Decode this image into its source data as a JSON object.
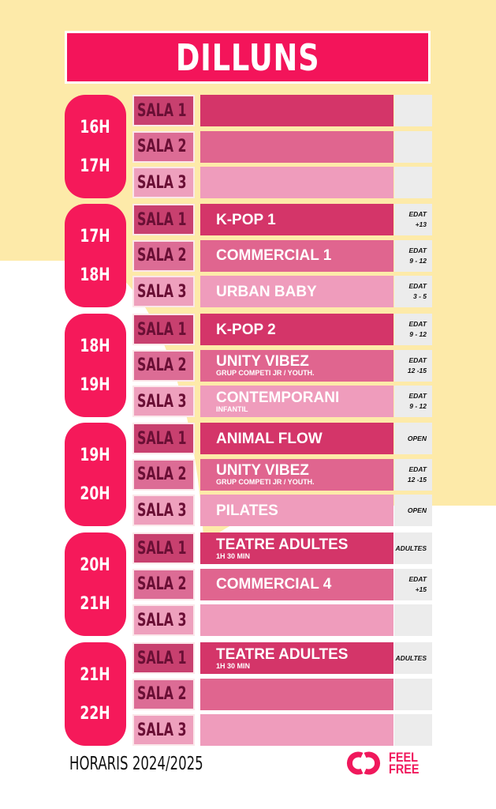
{
  "title": "DILLUNS",
  "blocks": [
    {
      "times": [
        "16H",
        "17H"
      ],
      "rows": [
        {
          "sala": "SALA 1",
          "class": "",
          "sub": "",
          "age": [
            "",
            ""
          ]
        },
        {
          "sala": "SALA 2",
          "class": "",
          "sub": "",
          "age": [
            "",
            ""
          ]
        },
        {
          "sala": "SALA 3",
          "class": "",
          "sub": "",
          "age": [
            "",
            ""
          ]
        }
      ]
    },
    {
      "times": [
        "17H",
        "18H"
      ],
      "rows": [
        {
          "sala": "SALA 1",
          "class": "K-POP 1",
          "sub": "",
          "age": [
            "EDAT",
            "+13"
          ]
        },
        {
          "sala": "SALA 2",
          "class": "COMMERCIAL 1",
          "sub": "",
          "age": [
            "EDAT",
            "9 - 12"
          ]
        },
        {
          "sala": "SALA 3",
          "class": "URBAN BABY",
          "sub": "",
          "age": [
            "EDAT",
            "3 - 5"
          ]
        }
      ]
    },
    {
      "times": [
        "18H",
        "19H"
      ],
      "rows": [
        {
          "sala": "SALA 1",
          "class": "K-POP 2",
          "sub": "",
          "age": [
            "EDAT",
            "9 - 12"
          ]
        },
        {
          "sala": "SALA 2",
          "class": "UNITY VIBEZ",
          "sub": "GRUP COMPETI JR / YOUTH.",
          "age": [
            "EDAT",
            "12 -15"
          ]
        },
        {
          "sala": "SALA 3",
          "class": "CONTEMPORANI",
          "sub": "INFANTIL",
          "age": [
            "EDAT",
            "9 - 12"
          ]
        }
      ]
    },
    {
      "times": [
        "19H",
        "20H"
      ],
      "rows": [
        {
          "sala": "SALA 1",
          "class": "ANIMAL FLOW",
          "sub": "",
          "age": [
            "OPEN",
            ""
          ]
        },
        {
          "sala": "SALA 2",
          "class": "UNITY VIBEZ",
          "sub": "GRUP COMPETI JR / YOUTH.",
          "age": [
            "EDAT",
            "12 -15"
          ]
        },
        {
          "sala": "SALA 3",
          "class": "PILATES",
          "sub": "",
          "age": [
            "OPEN",
            ""
          ]
        }
      ]
    },
    {
      "times": [
        "20H",
        "21H"
      ],
      "rows": [
        {
          "sala": "SALA 1",
          "class": "TEATRE ADULTES",
          "sub": "1H 30 MIN",
          "age": [
            "ADULTES",
            ""
          ]
        },
        {
          "sala": "SALA 2",
          "class": "COMMERCIAL 4",
          "sub": "",
          "age": [
            "EDAT",
            "+15"
          ]
        },
        {
          "sala": "SALA 3",
          "class": "",
          "sub": "",
          "age": [
            "",
            ""
          ]
        }
      ]
    },
    {
      "times": [
        "21H",
        "22H"
      ],
      "rows": [
        {
          "sala": "SALA 1",
          "class": "TEATRE ADULTES",
          "sub": "1H 30 MIN",
          "age": [
            "ADULTES",
            ""
          ]
        },
        {
          "sala": "SALA 2",
          "class": "",
          "sub": "",
          "age": [
            "",
            ""
          ]
        },
        {
          "sala": "SALA 3",
          "class": "",
          "sub": "",
          "age": [
            "",
            ""
          ]
        }
      ]
    }
  ],
  "footer": "HORARIS 2024/2025",
  "logo": {
    "line1": "FEEL",
    "line2": "FREE"
  }
}
